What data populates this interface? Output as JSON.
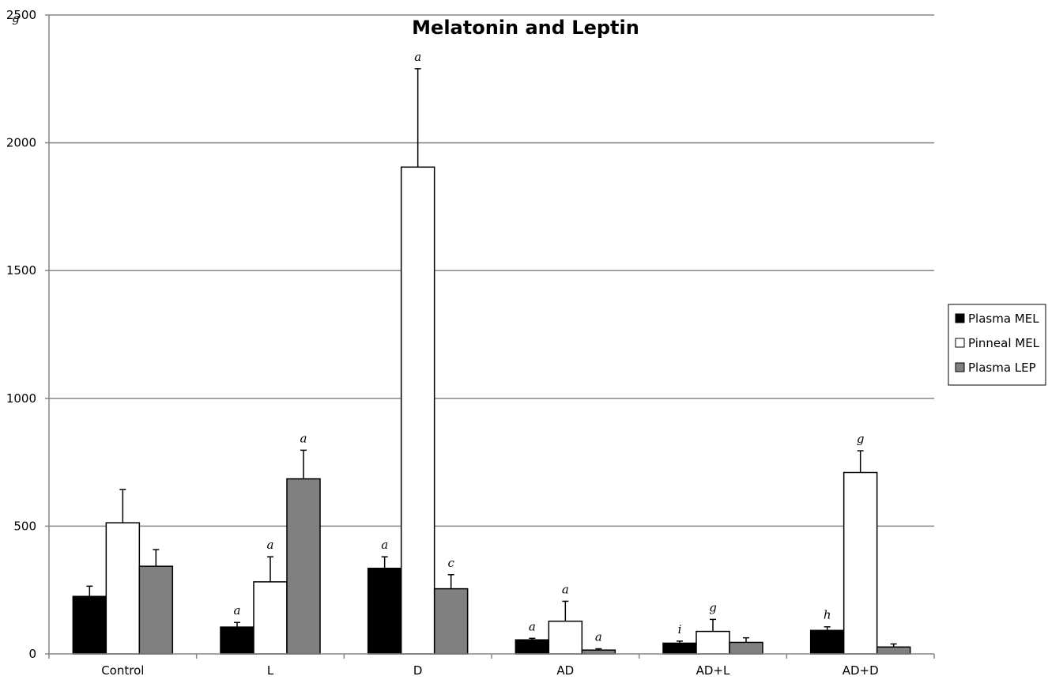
{
  "chart_data": {
    "type": "bar",
    "title": "Melatonin and Leptin",
    "xlabel": "",
    "ylabel": "",
    "ylim": [
      0,
      2500
    ],
    "yticks": [
      "0",
      "500",
      "1000",
      "1500",
      "2000",
      "2500"
    ],
    "grid": true,
    "legend_position": "right",
    "categories": [
      "Control",
      "L",
      "D",
      "AD",
      "AD+L",
      "AD+D"
    ],
    "series": [
      {
        "name": "Plasma MEL",
        "color": "#000000",
        "values": [
          225,
          105,
          335,
          55,
          42,
          92
        ],
        "errors": [
          40,
          18,
          45,
          6,
          8,
          14
        ],
        "labels": [
          "",
          "a",
          "a",
          "a",
          "i",
          "h"
        ]
      },
      {
        "name": "Pinneal MEL",
        "color": "#ffffff",
        "values": [
          513,
          282,
          1905,
          128,
          88,
          710
        ],
        "errors": [
          130,
          98,
          385,
          78,
          47,
          85
        ],
        "labels": [
          "",
          "a",
          "a",
          "a",
          "g",
          "g"
        ]
      },
      {
        "name": "Plasma LEP",
        "color": "#808080",
        "values": [
          343,
          685,
          255,
          15,
          45,
          27
        ],
        "errors": [
          65,
          112,
          55,
          5,
          18,
          12
        ],
        "labels": [
          "",
          "a",
          "c",
          "a",
          "",
          ""
        ]
      }
    ],
    "stray_marks": [
      "g"
    ]
  }
}
